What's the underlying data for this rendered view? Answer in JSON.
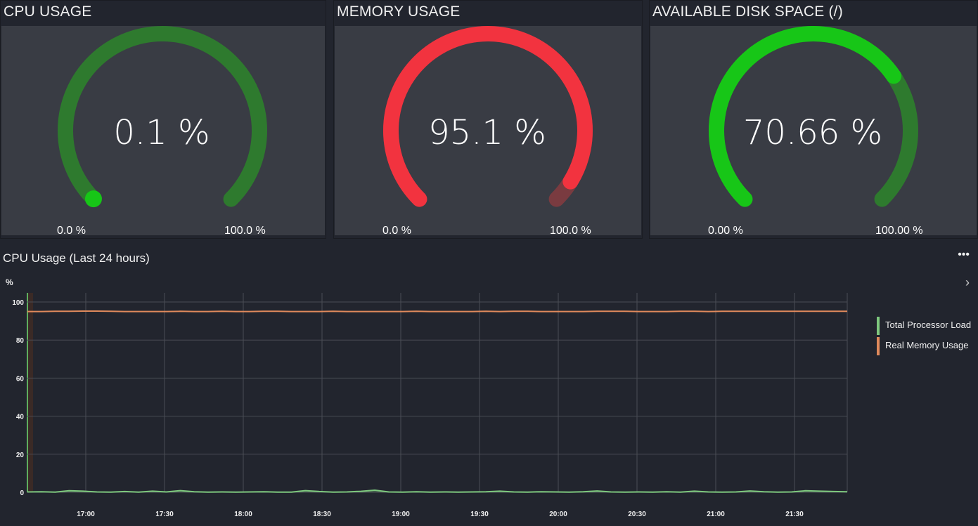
{
  "gauges": [
    {
      "title": "CPU USAGE",
      "value_text": "0.1 %",
      "value": 0.1,
      "min": "0.0 %",
      "max": "100.0 %",
      "fill_color": "#17c617",
      "track_color": "#2e7a2e",
      "dot_color": "#17c617"
    },
    {
      "title": "MEMORY USAGE",
      "value_text": "95.1 %",
      "value": 95.1,
      "min": "0.0 %",
      "max": "100.0 %",
      "fill_color": "#f2333f",
      "track_color": "#7a3b40",
      "dot_color": "#f2333f"
    },
    {
      "title": "AVAILABLE DISK SPACE (/)",
      "value_text": "70.66 %",
      "value": 70.66,
      "min": "0.00 %",
      "max": "100.00 %",
      "fill_color": "#17c617",
      "track_color": "#2e7a2e",
      "dot_color": "#17c617"
    }
  ],
  "chart_panel": {
    "title": "CPU Usage (Last 24 hours)",
    "more_icon": "more-horizontal-icon",
    "unit": "%",
    "expand_icon": "chevron-right-icon"
  },
  "chart_data": {
    "type": "line",
    "x_ticks": [
      "17:00",
      "17:30",
      "18:00",
      "18:30",
      "19:00",
      "19:30",
      "20:00",
      "20:30",
      "21:00",
      "21:30"
    ],
    "y_ticks": [
      0,
      20,
      40,
      60,
      80,
      100
    ],
    "ylim": [
      0,
      100
    ],
    "grid": true,
    "legend_position": "right",
    "series": [
      {
        "name": "Total Processor Load",
        "color": "#7ec87e",
        "values": [
          0.2,
          0.3,
          0.1,
          0.8,
          0.6,
          0.2,
          0.1,
          0.4,
          0.1,
          0.6,
          0.2,
          0.9,
          0.3,
          0.1,
          0.2,
          0.1,
          0.2,
          0.3,
          0.1,
          0.1,
          0.9,
          0.4,
          0.1,
          0.2,
          0.5,
          1.1,
          0.2,
          0.1,
          0.3,
          0.1,
          0.2,
          0.1,
          0.2,
          0.3,
          0.6,
          0.2,
          0.1,
          0.3,
          0.2,
          0.1,
          0.3,
          0.7,
          0.2,
          0.1,
          0.2,
          0.1,
          0.3,
          0.1,
          0.6,
          0.2,
          0.1,
          0.2,
          0.7,
          0.3,
          0.1,
          0.2,
          0.8,
          0.6,
          0.4,
          0.3
        ]
      },
      {
        "name": "Real Memory Usage",
        "color": "#e08a5c",
        "values": [
          95.0,
          95.0,
          95.1,
          95.1,
          95.2,
          95.2,
          95.1,
          95.0,
          95.0,
          95.0,
          95.0,
          95.1,
          95.0,
          95.0,
          95.1,
          95.0,
          95.0,
          95.1,
          95.1,
          95.0,
          95.0,
          95.0,
          95.1,
          95.0,
          95.0,
          95.0,
          95.0,
          95.0,
          95.1,
          95.0,
          95.0,
          95.0,
          95.0,
          95.1,
          95.0,
          95.1,
          95.1,
          95.0,
          95.0,
          95.0,
          95.0,
          95.1,
          95.1,
          95.1,
          95.0,
          95.0,
          95.0,
          95.1,
          95.1,
          95.0,
          95.1,
          95.1,
          95.1,
          95.1,
          95.1,
          95.1,
          95.1,
          95.1,
          95.1,
          95.1
        ]
      }
    ]
  }
}
